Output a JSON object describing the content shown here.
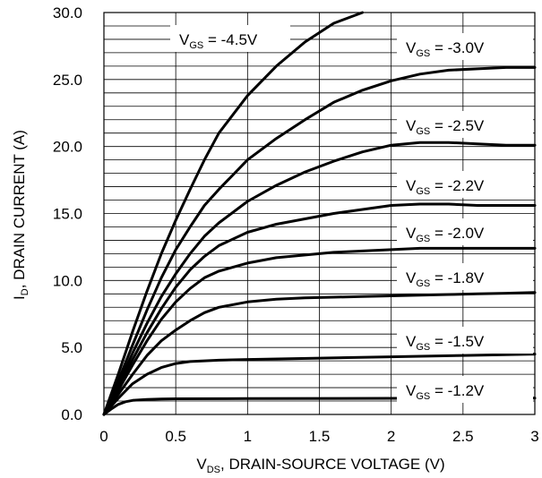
{
  "chart_data": {
    "type": "line",
    "xlabel_parts": {
      "main": "V",
      "sub": "DS",
      "rest": ", DRAIN-SOURCE VOLTAGE (V)"
    },
    "ylabel_parts": {
      "main": "I",
      "sub": "D",
      "rest": ", DRAIN CURRENT (A)"
    },
    "xlim": [
      0,
      3
    ],
    "ylim": [
      0,
      30
    ],
    "x_ticks": [
      "0",
      "0.5",
      "1",
      "1.5",
      "2",
      "2.5",
      "3"
    ],
    "y_ticks": [
      "0.0",
      "5.0",
      "10.0",
      "15.0",
      "20.0",
      "25.0",
      "30.0"
    ],
    "grid": true,
    "series": [
      {
        "name": "-4.5V",
        "label_prefix": "V",
        "label_sub": "GS",
        "label_rest": " = -4.5V",
        "x": [
          0,
          0.1,
          0.2,
          0.3,
          0.4,
          0.5,
          0.6,
          0.7,
          0.8,
          1.0,
          1.2,
          1.4,
          1.6,
          1.8
        ],
        "y": [
          0,
          3,
          6.2,
          9.2,
          12.0,
          14.5,
          16.8,
          19.0,
          21.0,
          23.8,
          26.0,
          27.8,
          29.2,
          30.0
        ]
      },
      {
        "name": "-3.0V",
        "label_prefix": "V",
        "label_sub": "GS",
        "label_rest": " = -3.0V",
        "x": [
          0,
          0.1,
          0.2,
          0.3,
          0.4,
          0.5,
          0.6,
          0.7,
          0.8,
          1.0,
          1.2,
          1.4,
          1.6,
          1.8,
          2.0,
          2.2,
          2.4,
          2.6,
          2.8,
          3.0
        ],
        "y": [
          0,
          2.5,
          5.2,
          7.8,
          10.2,
          12.3,
          14.0,
          15.6,
          16.8,
          19.0,
          20.6,
          22.0,
          23.3,
          24.2,
          24.9,
          25.4,
          25.7,
          25.8,
          25.9,
          25.9
        ]
      },
      {
        "name": "-2.5V",
        "label_prefix": "V",
        "label_sub": "GS",
        "label_rest": " = -2.5V",
        "x": [
          0,
          0.1,
          0.2,
          0.3,
          0.4,
          0.5,
          0.6,
          0.7,
          0.8,
          1.0,
          1.2,
          1.4,
          1.6,
          1.8,
          2.0,
          2.2,
          2.4,
          2.6,
          2.8,
          3.0
        ],
        "y": [
          0,
          2.2,
          4.6,
          6.8,
          8.8,
          10.5,
          12.0,
          13.3,
          14.3,
          15.9,
          17.1,
          18.1,
          18.9,
          19.6,
          20.1,
          20.3,
          20.3,
          20.2,
          20.1,
          20.1
        ]
      },
      {
        "name": "-2.2V",
        "label_prefix": "V",
        "label_sub": "GS",
        "label_rest": " = -2.2V",
        "x": [
          0,
          0.1,
          0.2,
          0.3,
          0.4,
          0.5,
          0.6,
          0.7,
          0.8,
          1.0,
          1.2,
          1.4,
          1.6,
          1.8,
          2.0,
          2.2,
          2.4,
          2.6,
          2.8,
          3.0
        ],
        "y": [
          0,
          2.0,
          4.1,
          6.1,
          7.9,
          9.5,
          10.8,
          11.8,
          12.6,
          13.6,
          14.2,
          14.6,
          15.0,
          15.3,
          15.6,
          15.7,
          15.7,
          15.6,
          15.6,
          15.6
        ]
      },
      {
        "name": "-2.0V",
        "label_prefix": "V",
        "label_sub": "GS",
        "label_rest": " = -2.0V",
        "x": [
          0,
          0.1,
          0.2,
          0.3,
          0.4,
          0.5,
          0.6,
          0.7,
          0.8,
          1.0,
          1.2,
          1.4,
          1.6,
          1.8,
          2.0,
          2.2,
          2.4,
          2.6,
          2.8,
          3.0
        ],
        "y": [
          0,
          1.8,
          3.7,
          5.5,
          7.1,
          8.4,
          9.4,
          10.2,
          10.7,
          11.3,
          11.7,
          11.9,
          12.1,
          12.2,
          12.3,
          12.4,
          12.4,
          12.4,
          12.4,
          12.4
        ]
      },
      {
        "name": "-1.8V",
        "label_prefix": "V",
        "label_sub": "GS",
        "label_rest": " = -1.8V",
        "x": [
          0,
          0.1,
          0.2,
          0.3,
          0.4,
          0.5,
          0.6,
          0.7,
          0.8,
          1.0,
          1.2,
          1.4,
          1.6,
          1.8,
          2.0,
          2.2,
          2.4,
          2.6,
          2.8,
          3.0
        ],
        "y": [
          0,
          1.5,
          3.0,
          4.4,
          5.5,
          6.3,
          7.0,
          7.6,
          8.0,
          8.4,
          8.6,
          8.7,
          8.75,
          8.8,
          8.85,
          8.9,
          8.95,
          9.0,
          9.05,
          9.1
        ]
      },
      {
        "name": "-1.5V",
        "label_prefix": "V",
        "label_sub": "GS",
        "label_rest": " = -1.5V",
        "x": [
          0,
          0.1,
          0.2,
          0.3,
          0.4,
          0.5,
          0.6,
          0.8,
          1.0,
          1.5,
          2.0,
          2.5,
          3.0
        ],
        "y": [
          0,
          1.2,
          2.3,
          3.0,
          3.5,
          3.8,
          3.95,
          4.05,
          4.1,
          4.2,
          4.3,
          4.4,
          4.5
        ]
      },
      {
        "name": "-1.2V",
        "label_prefix": "V",
        "label_sub": "GS",
        "label_rest": " = -1.2V",
        "x": [
          0,
          0.05,
          0.1,
          0.15,
          0.2,
          0.3,
          0.4,
          0.5,
          1.0,
          2.0,
          3.0
        ],
        "y": [
          0,
          0.4,
          0.75,
          0.95,
          1.05,
          1.12,
          1.15,
          1.17,
          1.18,
          1.2,
          1.22
        ]
      }
    ]
  }
}
